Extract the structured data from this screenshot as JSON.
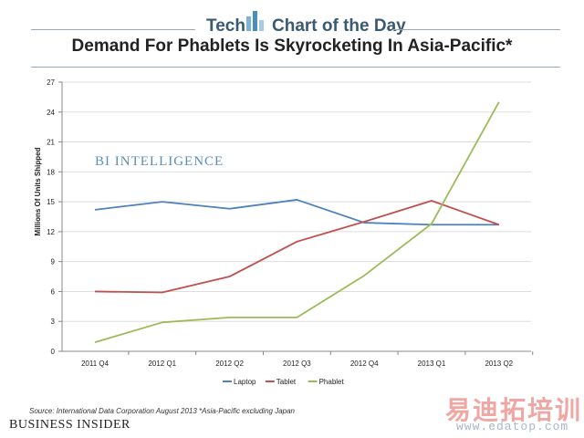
{
  "header": {
    "left": "Tech",
    "right": "Chart of the Day"
  },
  "watermark": {
    "brand": "BI INTELLIGENCE",
    "cn": "易迪拓培训",
    "url": "www.edatop.com"
  },
  "footer": {
    "source": "Source: International Data Corporation August 2013 *Asia-Pacific excluding Japan",
    "brand": "BUSINESS INSIDER"
  },
  "colors": {
    "laptop": "#4f81bd",
    "tablet": "#c0504d",
    "phablet": "#9bbb59",
    "header_icon": "#4a8fb8",
    "grid": "#dddddd"
  },
  "chart_data": {
    "type": "line",
    "title": "Demand For Phablets Is Skyrocketing In Asia-Pacific*",
    "xlabel": "",
    "ylabel": "Millions Of Units Shipped",
    "ylim": [
      0,
      27
    ],
    "yticks": [
      "0",
      "3",
      "6",
      "9",
      "12",
      "15",
      "18",
      "21",
      "24",
      "27"
    ],
    "categories": [
      "2011 Q4",
      "2012 Q1",
      "2012 Q2",
      "2012 Q3",
      "2012 Q4",
      "2013 Q1",
      "2013 Q2"
    ],
    "series": [
      {
        "name": "Laptop",
        "values": [
          14.2,
          15.0,
          14.3,
          15.2,
          12.9,
          12.7,
          12.7
        ]
      },
      {
        "name": "Tablet",
        "values": [
          6.0,
          5.9,
          7.5,
          11.0,
          13.0,
          15.1,
          12.7
        ]
      },
      {
        "name": "Phablet",
        "values": [
          0.9,
          2.9,
          3.4,
          3.4,
          7.6,
          12.8,
          25.0
        ]
      }
    ],
    "legend": "bottom"
  }
}
